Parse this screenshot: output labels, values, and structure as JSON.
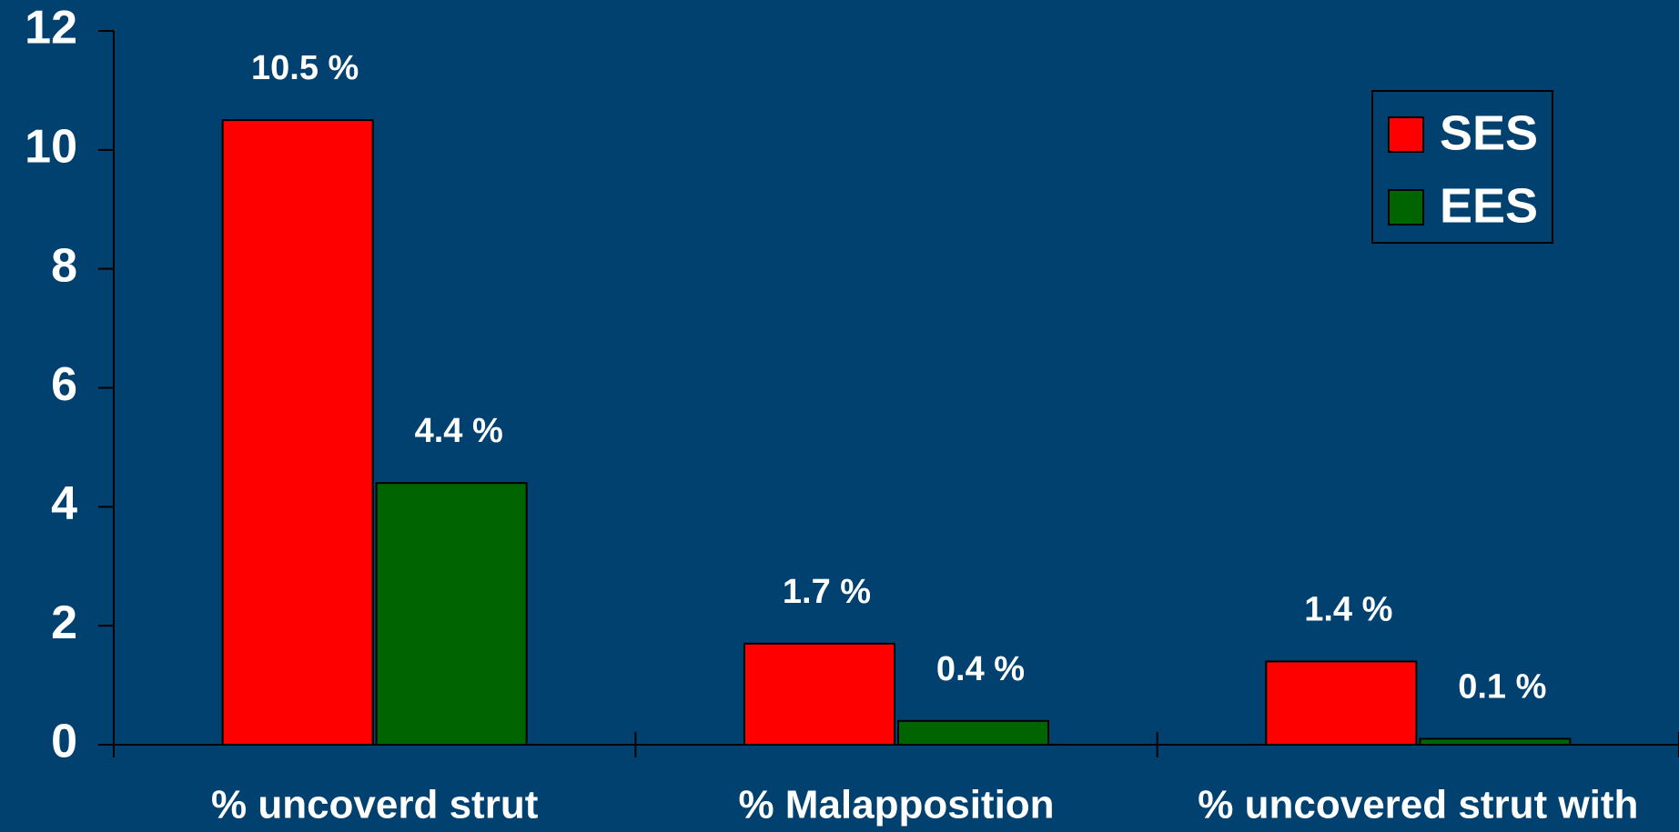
{
  "chart_data": {
    "type": "bar",
    "categories": [
      "% uncoverd strut",
      "% Malapposition",
      "% uncovered strut with"
    ],
    "series": [
      {
        "name": "SES",
        "color": "#ff0000",
        "values": [
          10.5,
          1.7,
          1.4
        ],
        "value_labels": [
          "10.5 %",
          "1.7 %",
          "1.4 %"
        ]
      },
      {
        "name": "EES",
        "color": "#006400",
        "values": [
          4.4,
          0.4,
          0.1
        ],
        "value_labels": [
          "4.4 %",
          "0.4 %",
          "0.1 %"
        ]
      }
    ],
    "ylim": [
      0,
      12
    ],
    "yticks": [
      0,
      2,
      4,
      6,
      8,
      10,
      12
    ],
    "grid": false,
    "legend": "top-right"
  }
}
